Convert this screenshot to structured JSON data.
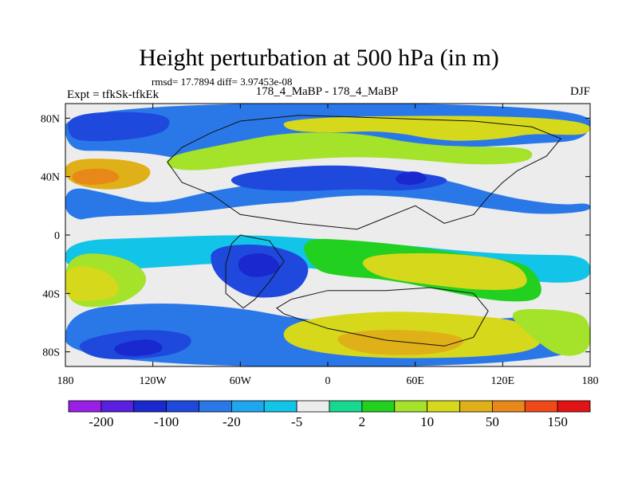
{
  "title": "Height perturbation at 500 hPa (in m)",
  "stats": "rmsd= 17.7894 diff= 3.97453e-08",
  "left_label": "Expt = tfkSk-tfkEk",
  "center_label": "178_4_MaBP - 178_4_MaBP",
  "right_label": "DJF",
  "axes": {
    "y_ticks": [
      {
        "value": 80,
        "label": "80N"
      },
      {
        "value": 40,
        "label": "40N"
      },
      {
        "value": 0,
        "label": "0"
      },
      {
        "value": -40,
        "label": "40S"
      },
      {
        "value": -80,
        "label": "80S"
      }
    ],
    "x_ticks": [
      {
        "value": -180,
        "label": "180"
      },
      {
        "value": -120,
        "label": "120W"
      },
      {
        "value": -60,
        "label": "60W"
      },
      {
        "value": 0,
        "label": "0"
      },
      {
        "value": 60,
        "label": "60E"
      },
      {
        "value": 120,
        "label": "120E"
      },
      {
        "value": 180,
        "label": "180"
      }
    ],
    "lon_range": [
      -180,
      180
    ],
    "lat_range": [
      -90,
      90
    ]
  },
  "colorbar": {
    "colors": [
      "#9a1fe6",
      "#5a1fe0",
      "#1a28d0",
      "#1f49dd",
      "#2a78e8",
      "#1ea7ef",
      "#12c4e8",
      "#ececec",
      "#18d890",
      "#22d020",
      "#a5e22a",
      "#d6d81c",
      "#e0b018",
      "#e88818",
      "#f04818",
      "#e01414"
    ],
    "labels": [
      {
        "boundary": 1,
        "text": "-200"
      },
      {
        "boundary": 3,
        "text": "-100"
      },
      {
        "boundary": 5,
        "text": "-20"
      },
      {
        "boundary": 7,
        "text": "-5"
      },
      {
        "boundary": 9,
        "text": "2"
      },
      {
        "boundary": 11,
        "text": "10"
      },
      {
        "boundary": 13,
        "text": "50"
      },
      {
        "boundary": 15,
        "text": "150"
      }
    ]
  },
  "map_regions": [
    {
      "name": "polar-north-blue",
      "color": "#2a78e8",
      "lonlat": [
        [
          -180,
          90
        ],
        [
          180,
          90
        ],
        [
          180,
          65
        ],
        [
          140,
          63
        ],
        [
          100,
          60
        ],
        [
          60,
          62
        ],
        [
          20,
          62
        ],
        [
          -20,
          58
        ],
        [
          -40,
          60
        ],
        [
          -60,
          52
        ],
        [
          -80,
          48
        ],
        [
          -100,
          52
        ],
        [
          -120,
          56
        ],
        [
          -150,
          58
        ],
        [
          -180,
          58
        ]
      ]
    },
    {
      "name": "arctic-dark-blue",
      "color": "#1f49dd",
      "lonlat": [
        [
          -178,
          84
        ],
        [
          -110,
          84
        ],
        [
          -108,
          72
        ],
        [
          -130,
          66
        ],
        [
          -160,
          64
        ],
        [
          -178,
          66
        ]
      ]
    },
    {
      "name": "north-yellow-band",
      "color": "#d6d81c",
      "lonlat": [
        [
          -30,
          80
        ],
        [
          100,
          82
        ],
        [
          180,
          78
        ],
        [
          180,
          68
        ],
        [
          140,
          70
        ],
        [
          120,
          66
        ],
        [
          80,
          64
        ],
        [
          40,
          72
        ],
        [
          0,
          70
        ],
        [
          -30,
          72
        ]
      ]
    },
    {
      "name": "north-green-band",
      "color": "#a5e22a",
      "lonlat": [
        [
          -110,
          54
        ],
        [
          -70,
          62
        ],
        [
          -30,
          70
        ],
        [
          20,
          70
        ],
        [
          60,
          62
        ],
        [
          100,
          60
        ],
        [
          140,
          60
        ],
        [
          140,
          50
        ],
        [
          100,
          48
        ],
        [
          60,
          52
        ],
        [
          20,
          54
        ],
        [
          -20,
          52
        ],
        [
          -60,
          48
        ],
        [
          -90,
          44
        ],
        [
          -110,
          46
        ]
      ]
    },
    {
      "name": "pacific-orange",
      "color": "#e0b018",
      "lonlat": [
        [
          -180,
          52
        ],
        [
          -140,
          52
        ],
        [
          -120,
          46
        ],
        [
          -125,
          36
        ],
        [
          -150,
          30
        ],
        [
          -180,
          36
        ]
      ]
    },
    {
      "name": "pacific-orange-core",
      "color": "#e88818",
      "lonlat": [
        [
          -175,
          44
        ],
        [
          -150,
          46
        ],
        [
          -140,
          38
        ],
        [
          -160,
          34
        ],
        [
          -175,
          36
        ]
      ]
    },
    {
      "name": "midlat-blue-trough",
      "color": "#2a78e8",
      "lonlat": [
        [
          -180,
          34
        ],
        [
          -150,
          28
        ],
        [
          -120,
          20
        ],
        [
          -80,
          30
        ],
        [
          -40,
          36
        ],
        [
          0,
          46
        ],
        [
          40,
          44
        ],
        [
          80,
          38
        ],
        [
          120,
          26
        ],
        [
          160,
          20
        ],
        [
          180,
          22
        ],
        [
          180,
          16
        ],
        [
          140,
          14
        ],
        [
          100,
          20
        ],
        [
          60,
          26
        ],
        [
          20,
          28
        ],
        [
          -20,
          24
        ],
        [
          -60,
          16
        ],
        [
          -100,
          12
        ],
        [
          -140,
          10
        ],
        [
          -180,
          10
        ]
      ]
    },
    {
      "name": "midlat-dark-blue",
      "color": "#1f49dd",
      "lonlat": [
        [
          -70,
          40
        ],
        [
          -30,
          46
        ],
        [
          10,
          48
        ],
        [
          50,
          44
        ],
        [
          90,
          38
        ],
        [
          60,
          30
        ],
        [
          20,
          32
        ],
        [
          -20,
          30
        ],
        [
          -60,
          32
        ]
      ]
    },
    {
      "name": "trough-core",
      "color": "#1a28d0",
      "lonlat": [
        [
          48,
          42
        ],
        [
          62,
          44
        ],
        [
          70,
          38
        ],
        [
          58,
          34
        ],
        [
          46,
          36
        ]
      ]
    },
    {
      "name": "tropical-white",
      "color": "#ececec",
      "lonlat": [
        [
          -180,
          12
        ],
        [
          -100,
          14
        ],
        [
          -40,
          22
        ],
        [
          20,
          24
        ],
        [
          80,
          22
        ],
        [
          140,
          14
        ],
        [
          180,
          10
        ],
        [
          180,
          -10
        ],
        [
          120,
          -8
        ],
        [
          60,
          -2
        ],
        [
          0,
          -4
        ],
        [
          -60,
          -2
        ],
        [
          -120,
          -4
        ],
        [
          -180,
          -4
        ]
      ]
    },
    {
      "name": "south-cyan-band",
      "color": "#12c4e8",
      "lonlat": [
        [
          -180,
          -4
        ],
        [
          -120,
          -2
        ],
        [
          -60,
          0
        ],
        [
          -20,
          -2
        ],
        [
          40,
          -6
        ],
        [
          100,
          -12
        ],
        [
          140,
          -14
        ],
        [
          180,
          -14
        ],
        [
          180,
          -34
        ],
        [
          120,
          -30
        ],
        [
          60,
          -26
        ],
        [
          0,
          -24
        ],
        [
          -60,
          -18
        ],
        [
          -120,
          -22
        ],
        [
          -180,
          -26
        ]
      ]
    },
    {
      "name": "south-green-band",
      "color": "#a5e22a",
      "lonlat": [
        [
          -180,
          -12
        ],
        [
          -140,
          -14
        ],
        [
          -120,
          -30
        ],
        [
          -140,
          -48
        ],
        [
          -180,
          -50
        ]
      ]
    },
    {
      "name": "south-yellow-west",
      "color": "#d6d81c",
      "lonlat": [
        [
          -180,
          -20
        ],
        [
          -150,
          -24
        ],
        [
          -140,
          -42
        ],
        [
          -170,
          -46
        ],
        [
          -180,
          -42
        ]
      ]
    },
    {
      "name": "south-atlantic-green",
      "color": "#22d020",
      "lonlat": [
        [
          -20,
          -2
        ],
        [
          20,
          -4
        ],
        [
          60,
          -8
        ],
        [
          110,
          -16
        ],
        [
          140,
          -20
        ],
        [
          150,
          -44
        ],
        [
          120,
          -46
        ],
        [
          80,
          -38
        ],
        [
          40,
          -30
        ],
        [
          10,
          -28
        ],
        [
          -10,
          -24
        ]
      ]
    },
    {
      "name": "south-indian-yellow",
      "color": "#d6d81c",
      "lonlat": [
        [
          20,
          -14
        ],
        [
          80,
          -12
        ],
        [
          130,
          -18
        ],
        [
          140,
          -36
        ],
        [
          110,
          -38
        ],
        [
          70,
          -34
        ],
        [
          30,
          -28
        ]
      ]
    },
    {
      "name": "south-blue-patch",
      "color": "#1f49dd",
      "lonlat": [
        [
          -80,
          -8
        ],
        [
          -40,
          -6
        ],
        [
          -10,
          -18
        ],
        [
          -20,
          -40
        ],
        [
          -50,
          -44
        ],
        [
          -70,
          -34
        ],
        [
          -80,
          -22
        ]
      ]
    },
    {
      "name": "south-low-dark",
      "color": "#1a28d0",
      "lonlat": [
        [
          -60,
          -14
        ],
        [
          -40,
          -12
        ],
        [
          -30,
          -24
        ],
        [
          -50,
          -30
        ],
        [
          -62,
          -24
        ]
      ]
    },
    {
      "name": "southern-blue-belt",
      "color": "#2a78e8",
      "lonlat": [
        [
          -180,
          -52
        ],
        [
          -120,
          -46
        ],
        [
          -60,
          -50
        ],
        [
          -20,
          -58
        ],
        [
          20,
          -60
        ],
        [
          80,
          -60
        ],
        [
          140,
          -56
        ],
        [
          180,
          -54
        ],
        [
          180,
          -90
        ],
        [
          -180,
          -90
        ]
      ]
    },
    {
      "name": "southern-dark-core",
      "color": "#1f49dd",
      "lonlat": [
        [
          -170,
          -72
        ],
        [
          -130,
          -64
        ],
        [
          -90,
          -68
        ],
        [
          -100,
          -82
        ],
        [
          -150,
          -86
        ],
        [
          -170,
          -80
        ]
      ]
    },
    {
      "name": "southern-low-core",
      "color": "#1a28d0",
      "lonlat": [
        [
          -150,
          -76
        ],
        [
          -120,
          -70
        ],
        [
          -110,
          -80
        ],
        [
          -140,
          -84
        ]
      ]
    },
    {
      "name": "antarctic-yellow",
      "color": "#d6d81c",
      "lonlat": [
        [
          -30,
          -60
        ],
        [
          30,
          -52
        ],
        [
          90,
          -54
        ],
        [
          140,
          -60
        ],
        [
          150,
          -78
        ],
        [
          100,
          -84
        ],
        [
          20,
          -84
        ],
        [
          -30,
          -76
        ]
      ]
    },
    {
      "name": "antarctic-orange",
      "color": "#e0b018",
      "lonlat": [
        [
          0,
          -68
        ],
        [
          50,
          -64
        ],
        [
          100,
          -70
        ],
        [
          80,
          -82
        ],
        [
          20,
          -82
        ]
      ]
    },
    {
      "name": "antarctic-green-edge",
      "color": "#a5e22a",
      "lonlat": [
        [
          120,
          -50
        ],
        [
          170,
          -52
        ],
        [
          180,
          -60
        ],
        [
          180,
          -80
        ],
        [
          160,
          -84
        ],
        [
          140,
          -70
        ]
      ]
    }
  ],
  "coastlines": [
    {
      "name": "antarctica-outline",
      "lonlat": [
        [
          -30,
          -54
        ],
        [
          0,
          -64
        ],
        [
          40,
          -72
        ],
        [
          80,
          -76
        ],
        [
          100,
          -70
        ],
        [
          110,
          -52
        ],
        [
          100,
          -40
        ],
        [
          70,
          -36
        ],
        [
          40,
          -38
        ],
        [
          0,
          -38
        ],
        [
          -25,
          -44
        ],
        [
          -35,
          -50
        ]
      ]
    },
    {
      "name": "eurasia-outline",
      "lonlat": [
        [
          -60,
          78
        ],
        [
          -20,
          82
        ],
        [
          40,
          80
        ],
        [
          100,
          78
        ],
        [
          140,
          74
        ],
        [
          160,
          66
        ],
        [
          150,
          54
        ],
        [
          130,
          44
        ],
        [
          120,
          36
        ],
        [
          110,
          26
        ],
        [
          100,
          14
        ],
        [
          80,
          8
        ],
        [
          60,
          20
        ],
        [
          40,
          12
        ],
        [
          20,
          4
        ],
        [
          -20,
          8
        ],
        [
          -60,
          14
        ],
        [
          -80,
          28
        ],
        [
          -100,
          36
        ],
        [
          -110,
          50
        ],
        [
          -100,
          60
        ],
        [
          -80,
          70
        ]
      ]
    },
    {
      "name": "south-continent-outline",
      "lonlat": [
        [
          -60,
          0
        ],
        [
          -40,
          -4
        ],
        [
          -30,
          -18
        ],
        [
          -40,
          -32
        ],
        [
          -50,
          -44
        ],
        [
          -58,
          -50
        ],
        [
          -70,
          -40
        ],
        [
          -70,
          -20
        ],
        [
          -66,
          -6
        ]
      ]
    }
  ]
}
